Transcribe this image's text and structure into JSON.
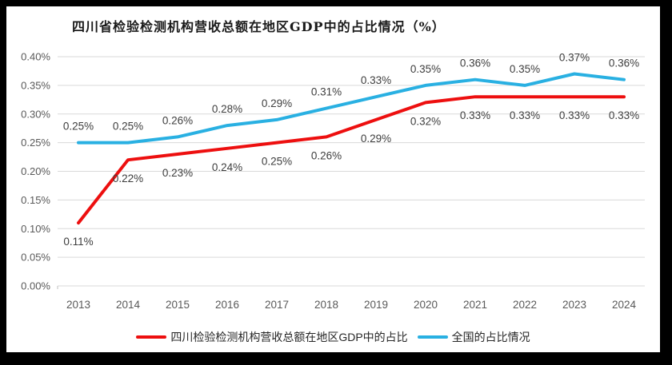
{
  "chart_data": {
    "type": "line",
    "title": "四川省检验检测机构营收总额在地区GDP中的占比情况（%）",
    "categories": [
      "2013",
      "2014",
      "2015",
      "2016",
      "2017",
      "2018",
      "2019",
      "2020",
      "2021",
      "2022",
      "2023",
      "2024"
    ],
    "y_axis": {
      "ticks": [
        "0.40%",
        "0.35%",
        "0.30%",
        "0.25%",
        "0.20%",
        "0.15%",
        "0.10%",
        "0.05%",
        "0.00%"
      ],
      "min": 0,
      "max": 0.4,
      "unit": "%"
    },
    "grid": true,
    "legend_position": "bottom",
    "series": [
      {
        "name": "四川检验检测机构营收总额在地区GDP中的占比",
        "color": "#ED0F0F",
        "label_position": "below",
        "values": [
          0.11,
          0.22,
          0.23,
          0.24,
          0.25,
          0.26,
          0.29,
          0.32,
          0.33,
          0.33,
          0.33,
          0.33
        ],
        "labels": [
          "0.11%",
          "0.22%",
          "0.23%",
          "0.24%",
          "0.25%",
          "0.26%",
          "0.29%",
          "0.32%",
          "0.33%",
          "0.33%",
          "0.33%",
          "0.33%"
        ]
      },
      {
        "name": "全国的占比情况",
        "color": "#29B0E2",
        "label_position": "above",
        "values": [
          0.25,
          0.25,
          0.26,
          0.28,
          0.29,
          0.31,
          0.33,
          0.35,
          0.36,
          0.35,
          0.37,
          0.36
        ],
        "labels": [
          "0.25%",
          "0.25%",
          "0.26%",
          "0.28%",
          "0.29%",
          "0.31%",
          "0.33%",
          "0.35%",
          "0.36%",
          "0.35%",
          "0.37%",
          "0.36%"
        ]
      }
    ],
    "style": {
      "gridline_color": "#D9D9D9",
      "axis_label_color": "#595959",
      "data_label_color": "#3d3d3d"
    }
  }
}
